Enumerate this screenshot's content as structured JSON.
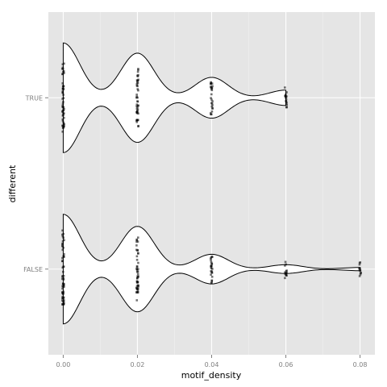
{
  "chart_data": {
    "type": "violin",
    "orientation": "horizontal",
    "xlabel": "motif_density",
    "ylabel": "different",
    "xlim": [
      -0.004,
      0.084
    ],
    "x_ticks": [
      0.0,
      0.02,
      0.04,
      0.06,
      0.08
    ],
    "x_tick_labels": [
      "0.00",
      "0.02",
      "0.04",
      "0.06",
      "0.08"
    ],
    "categories": [
      "TRUE",
      "FALSE"
    ],
    "grid": true,
    "legend": "none",
    "colors": {
      "panel_background": "#e5e5e5",
      "grid_line": "#ffffff",
      "violin_fill": "#ffffff",
      "violin_outline": "#000000",
      "points": "#000000"
    },
    "series": [
      {
        "name": "TRUE",
        "range": [
          0.0,
          0.06
        ],
        "density": [
          [
            0.0,
            0.86
          ],
          [
            0.02,
            0.7
          ],
          [
            0.04,
            0.32
          ],
          [
            0.06,
            0.12
          ]
        ],
        "point_values": [
          0.0,
          0.02,
          0.04,
          0.06
        ]
      },
      {
        "name": "FALSE",
        "range": [
          0.0,
          0.08
        ],
        "density": [
          [
            0.0,
            1.0
          ],
          [
            0.02,
            0.78
          ],
          [
            0.04,
            0.27
          ],
          [
            0.06,
            0.08
          ],
          [
            0.08,
            0.03
          ]
        ],
        "point_values": [
          0.0,
          0.02,
          0.04,
          0.06,
          0.08
        ]
      }
    ]
  }
}
